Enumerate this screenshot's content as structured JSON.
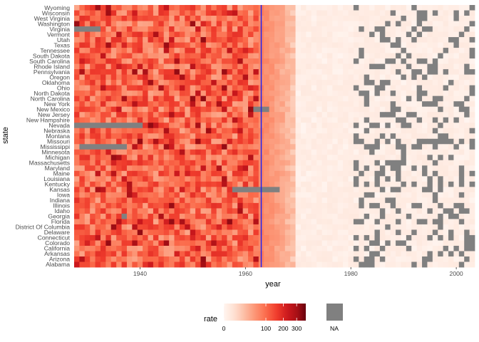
{
  "chart_data": {
    "type": "heatmap",
    "xlabel": "year",
    "ylabel": "state",
    "x_range": [
      1928,
      2003
    ],
    "x_ticks": [
      "1940",
      "1960",
      "1980",
      "2000"
    ],
    "x_tick_values": [
      1940,
      1960,
      1980,
      2000
    ],
    "vline_year": 1963,
    "vline_color": "#2222ee",
    "grid": false,
    "states_top_to_bottom": [
      "Wyoming",
      "Wisconsin",
      "West Virginia",
      "Washington",
      "Virginia",
      "Vermont",
      "Utah",
      "Texas",
      "Tennessee",
      "South Dakota",
      "South Carolina",
      "Rhode Island",
      "Pennsylvania",
      "Oregon",
      "Oklahoma",
      "Ohio",
      "North Dakota",
      "North Carolina",
      "New York",
      "New Mexico",
      "New Jersey",
      "New Hampshire",
      "Nevada",
      "Nebraska",
      "Montana",
      "Missouri",
      "Mississippi",
      "Minnesota",
      "Michigan",
      "Massachusetts",
      "Maryland",
      "Maine",
      "Louisiana",
      "Kentucky",
      "Kansas",
      "Iowa",
      "Indiana",
      "Illinois",
      "Idaho",
      "Georgia",
      "Florida",
      "District Of Columbia",
      "Delaware",
      "Connecticut",
      "Colorado",
      "California",
      "Arkansas",
      "Arizona",
      "Alabama"
    ],
    "color_scale": {
      "name": "Reds (sqrt)",
      "low": "#fff5f0",
      "mid": "#fb6a4a",
      "high": "#67000d",
      "na_color": "#808080"
    },
    "approx_value_ranges": [
      {
        "period": "1928-1962",
        "typical_rate": [
          40,
          180
        ],
        "max_rate": 330
      },
      {
        "period": "1963-1969",
        "typical_rate": [
          5,
          60
        ]
      },
      {
        "period": "1970-2003",
        "typical_rate": [
          0,
          2
        ]
      }
    ],
    "na_regions": [
      {
        "state": "Virginia",
        "years": [
          1928,
          1932
        ]
      },
      {
        "state": "New Mexico",
        "years": [
          1962,
          1964
        ]
      },
      {
        "state": "Nevada",
        "years": [
          1928,
          1940
        ]
      },
      {
        "state": "Mississippi",
        "years": [
          1929,
          1937
        ]
      },
      {
        "state": "Kansas",
        "years": [
          1958,
          1966
        ]
      },
      {
        "state": "Georgia",
        "years": [
          1937,
          1937
        ]
      }
    ],
    "na_post1980_note": "Scattered NA cells (reporting gaps) across most states after 1980."
  },
  "legend": {
    "title": "rate",
    "ticks": [
      "0",
      "100",
      "200",
      "300"
    ],
    "tick_values": [
      0,
      100,
      200,
      300
    ],
    "max_value": 380,
    "na_label": "NA"
  }
}
